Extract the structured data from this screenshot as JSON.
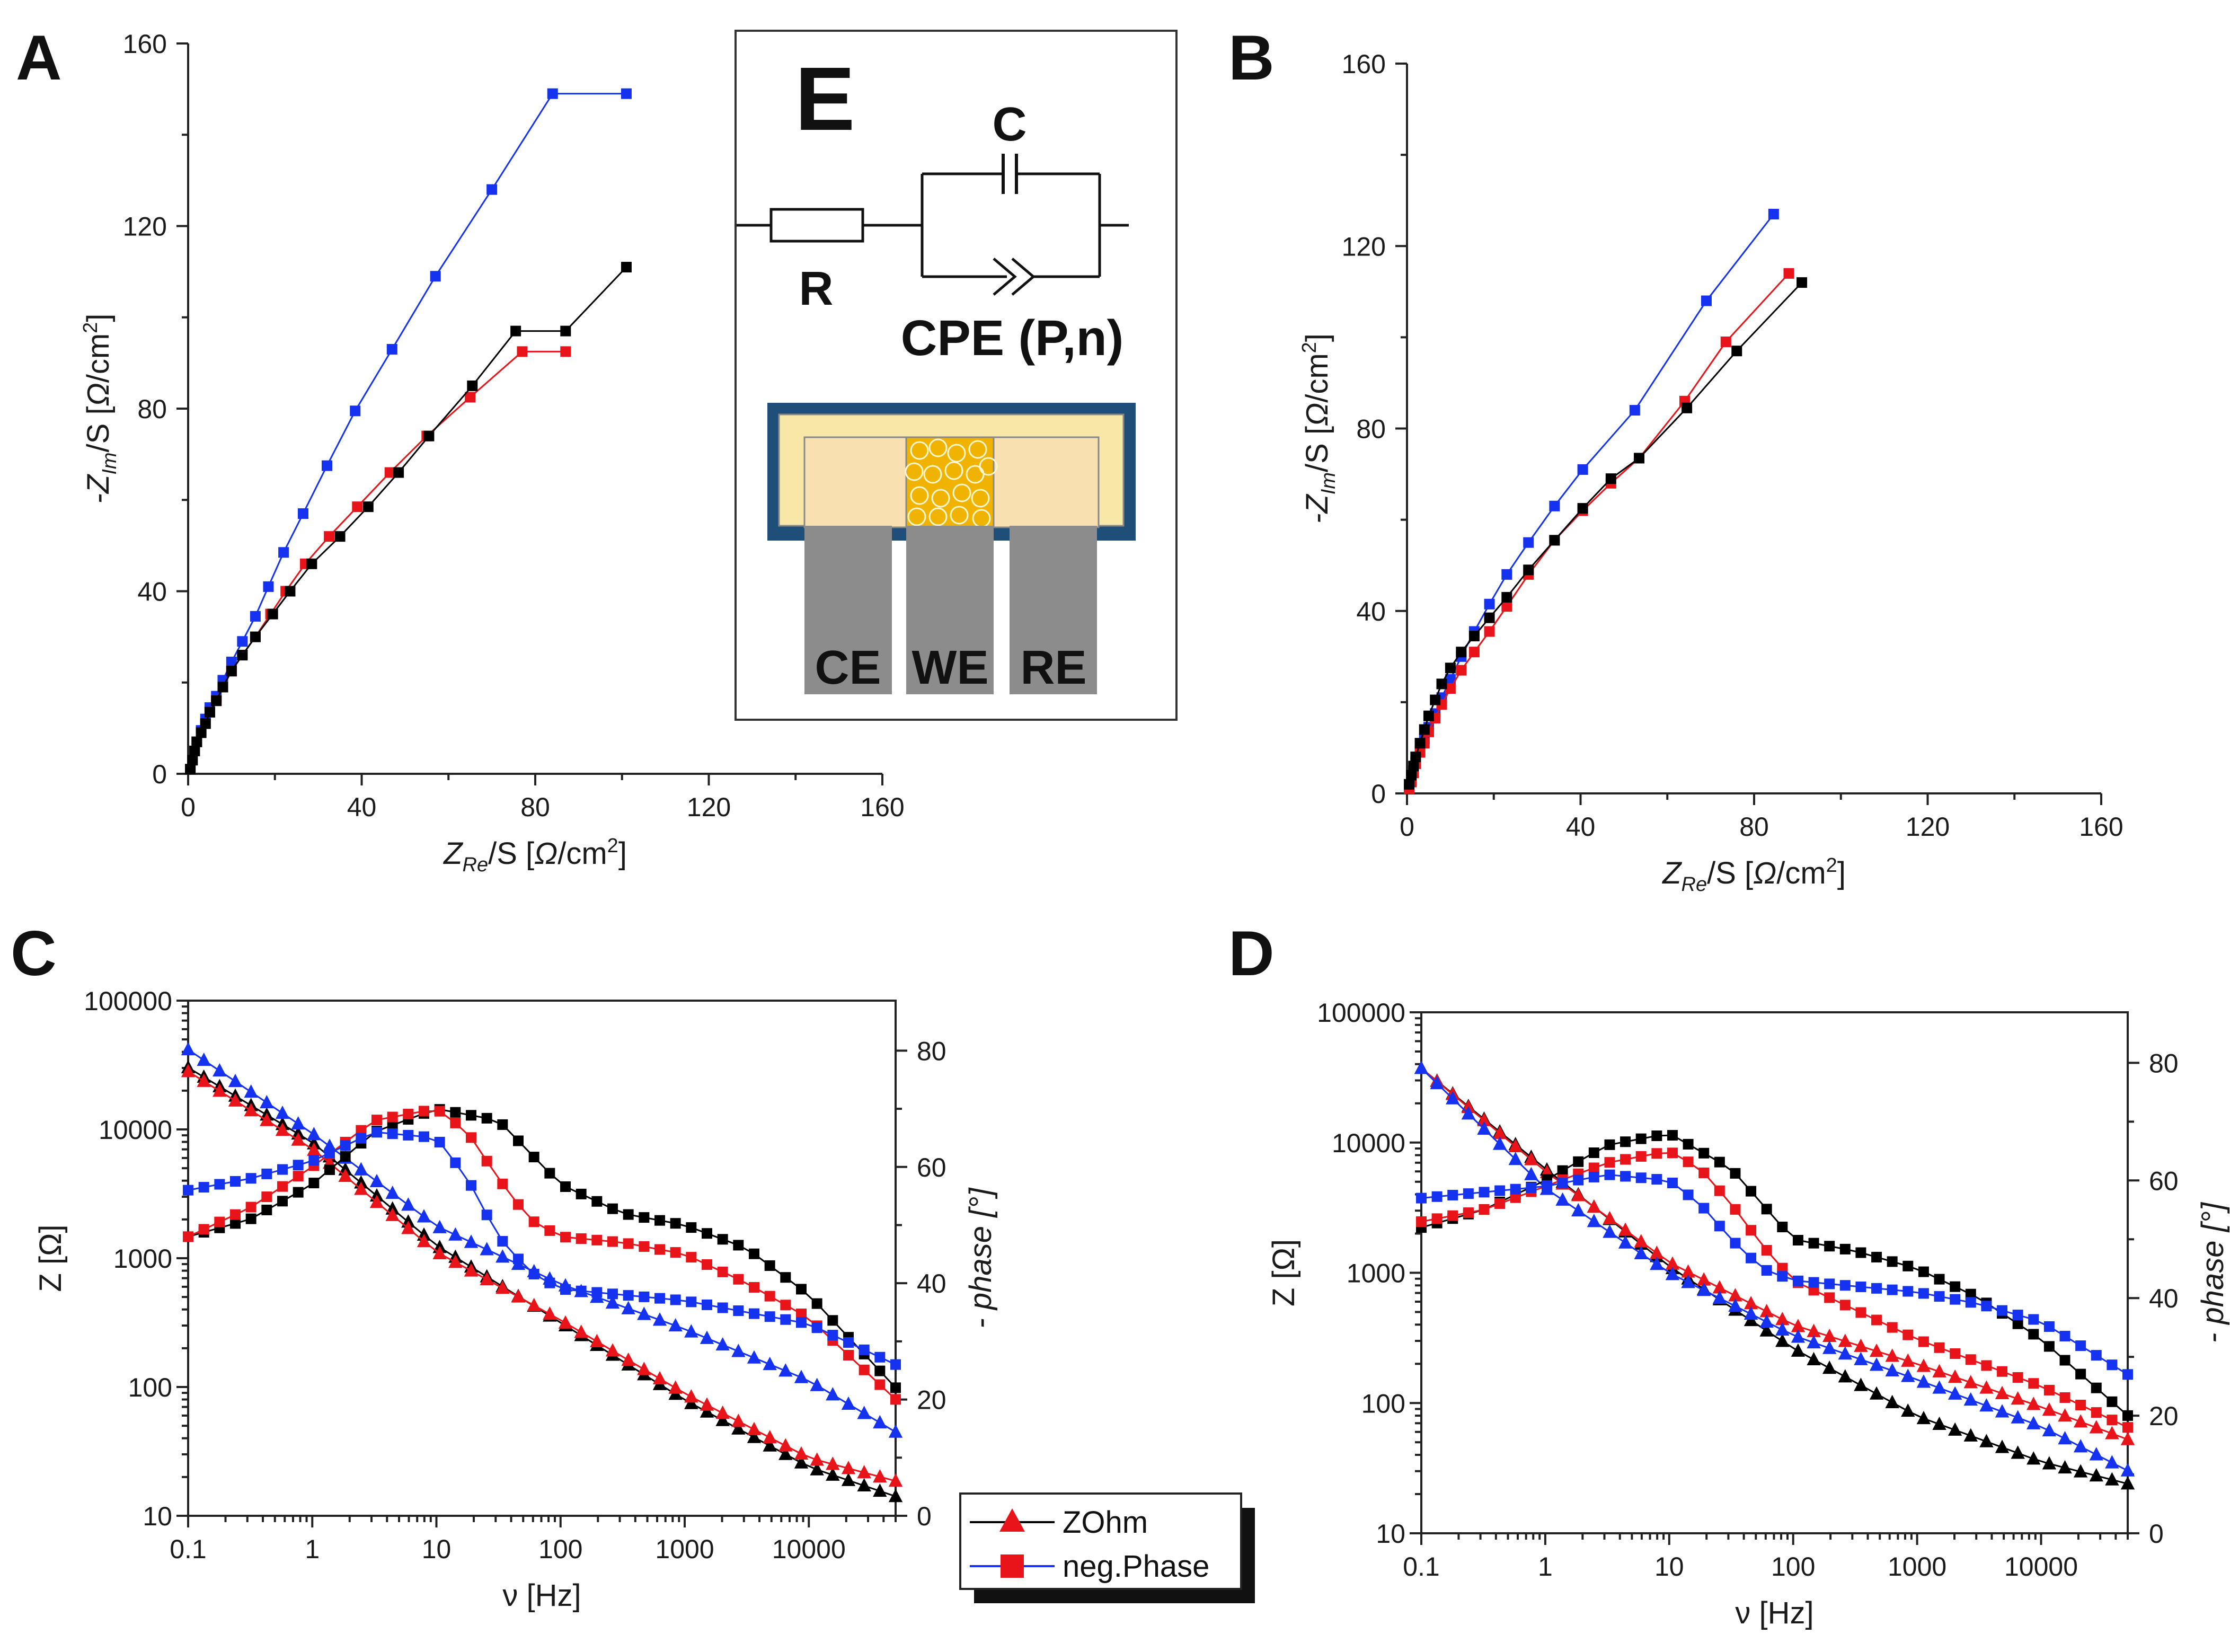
{
  "figure": {
    "panel_labels": {
      "a": "A",
      "b": "B",
      "c": "C",
      "d": "D",
      "e": "E"
    },
    "schematic": {
      "label": "E",
      "capacitor_label": "C",
      "resistor_label": "R",
      "cpe_label": "CPE (P,n)",
      "electrodes": [
        "CE",
        "WE",
        "RE"
      ]
    },
    "legend": {
      "entries": [
        {
          "label": "ZOhm",
          "marker": "triangle"
        },
        {
          "label": "neg.Phase",
          "marker": "square"
        }
      ]
    },
    "colors": {
      "black": "#000000",
      "red": "#e8141a",
      "blue": "#1432f0",
      "frame_blue": "#1f4e79",
      "yellow_fill": "#f7e8a8",
      "electrode_gray": "#8c8c8c",
      "we_gold": "#f0b400"
    }
  },
  "chart_data": [
    {
      "id": "A",
      "type": "scatter",
      "title": "A",
      "xlabel_parts": [
        "Z",
        "Re",
        "/S [",
        "Ω",
        "/cm",
        "2",
        "]"
      ],
      "ylabel_parts": [
        "-Z",
        "Im",
        "/S [",
        "Ω",
        "/cm",
        "2",
        "]"
      ],
      "xlim": [
        0,
        160
      ],
      "ylim": [
        0,
        160
      ],
      "xticks": [
        "0",
        "40",
        "80",
        "120",
        "160"
      ],
      "yticks": [
        "0",
        "40",
        "80",
        "120",
        "160"
      ],
      "series": [
        {
          "name": "blue",
          "color": "#1432f0",
          "x": [
            0.5,
            1,
            1.5,
            2,
            3,
            4,
            5,
            6.5,
            8,
            10,
            12.5,
            15.5,
            18.5,
            22,
            26.5,
            32,
            38.5,
            47,
            57,
            70,
            84,
            101
          ],
          "y": [
            1,
            3,
            5,
            7,
            9.5,
            12,
            14.5,
            17,
            20.5,
            24.5,
            29,
            34.5,
            41,
            48.5,
            57,
            67.5,
            79.5,
            93,
            109,
            128,
            149,
            149
          ]
        },
        {
          "name": "red",
          "color": "#e8141a",
          "x": [
            0.5,
            1,
            1.5,
            2,
            3,
            4,
            5,
            6.5,
            8,
            10,
            12.5,
            15.5,
            19,
            22.5,
            27,
            32.5,
            39,
            46.5,
            55,
            65,
            77,
            87
          ],
          "y": [
            1,
            3,
            5,
            7,
            9,
            11,
            13.5,
            16,
            19,
            22.5,
            26,
            30,
            35,
            40,
            46,
            52,
            58.5,
            66,
            74,
            82.5,
            92.5,
            92.5
          ]
        },
        {
          "name": "black",
          "color": "#000000",
          "x": [
            0.5,
            1,
            1.5,
            2,
            3,
            4,
            5,
            6.5,
            8,
            10,
            12.5,
            15.5,
            19.5,
            23.5,
            28.5,
            35,
            41.5,
            48.5,
            55.5,
            65.5,
            75.5,
            87,
            101
          ],
          "y": [
            1,
            3,
            5,
            7,
            9,
            11,
            13.5,
            16,
            19,
            22.5,
            26,
            30,
            35,
            40,
            46,
            52,
            58.5,
            66,
            74,
            85,
            97,
            97,
            111
          ]
        }
      ]
    },
    {
      "id": "B",
      "type": "scatter",
      "title": "B",
      "xlabel_parts": [
        "Z",
        "Re",
        "/S [",
        "Ω",
        "/cm",
        "2",
        "]"
      ],
      "ylabel_parts": [
        "-Z",
        "Im",
        "/S [",
        "Ω",
        "/cm",
        "2",
        "]"
      ],
      "xlim": [
        0,
        160
      ],
      "ylim": [
        0,
        160
      ],
      "xticks": [
        "0",
        "40",
        "80",
        "120",
        "160"
      ],
      "yticks": [
        "0",
        "40",
        "80",
        "120",
        "160"
      ],
      "series": [
        {
          "name": "blue",
          "color": "#1432f0",
          "x": [
            0.5,
            1,
            1.5,
            2,
            3,
            4,
            5,
            6.5,
            8,
            10,
            12.5,
            15.5,
            19,
            23,
            28,
            34,
            40.5,
            52.5,
            69,
            84.5
          ],
          "y": [
            1,
            3,
            5,
            7,
            9.5,
            12,
            14.5,
            17.5,
            21,
            25,
            30,
            35.5,
            41.5,
            48,
            55,
            63,
            71,
            84,
            108,
            127
          ]
        },
        {
          "name": "red",
          "color": "#e8141a",
          "x": [
            0.5,
            1,
            1.5,
            2,
            3,
            4,
            5,
            6.5,
            8,
            10,
            12.5,
            15.5,
            19,
            23,
            28,
            34,
            40.5,
            47,
            53.5,
            64,
            73.5,
            88
          ],
          "y": [
            1,
            2.5,
            4.5,
            6.5,
            9,
            11,
            13.5,
            16.5,
            19.5,
            23,
            27,
            31,
            35.5,
            41,
            48,
            55.5,
            62,
            68,
            73.5,
            86,
            99,
            114
          ]
        },
        {
          "name": "black",
          "color": "#000000",
          "x": [
            0.5,
            1,
            1.5,
            2,
            3,
            4,
            5,
            6.5,
            8,
            10,
            12.5,
            15.5,
            19,
            23,
            28,
            34,
            40.5,
            47,
            53.5,
            64.5,
            76,
            91
          ],
          "y": [
            2,
            4,
            6,
            8,
            11,
            14,
            17,
            20.5,
            24,
            27.5,
            31,
            34.5,
            38.5,
            43,
            49,
            55.5,
            62.5,
            69,
            73.5,
            84.5,
            97,
            112
          ]
        }
      ]
    },
    {
      "id": "C",
      "type": "scatter",
      "title": "C",
      "xlabel": "ν [Hz]",
      "ylabel": "Z [Ω]",
      "y2label": "- phase [°]",
      "xlim": [
        0.1,
        50000
      ],
      "ylim": [
        10,
        100000
      ],
      "y2lim": [
        0,
        88.6
      ],
      "xticks": [
        "0.1",
        "1",
        "10",
        "100",
        "1000",
        "10000"
      ],
      "yticks": [
        "10",
        "100",
        "1000",
        "10000",
        "100000"
      ],
      "y2ticks": [
        "0",
        "20",
        "40",
        "60",
        "80"
      ],
      "impedance_series": [
        {
          "name": "black ZOhm",
          "color": "#000000",
          "logf": [
            -1,
            0,
            1,
            2,
            3,
            4,
            4.7
          ],
          "logz": [
            4.48,
            3.9,
            3.1,
            2.5,
            1.9,
            1.38,
            1.15
          ]
        },
        {
          "name": "red ZOhm",
          "color": "#e8141a",
          "logf": [
            -1,
            0,
            1,
            2,
            3,
            4,
            4.7
          ],
          "logz": [
            4.45,
            3.85,
            3.05,
            2.52,
            1.95,
            1.45,
            1.27
          ]
        },
        {
          "name": "blue ZOhm",
          "color": "#1432f0",
          "logf": [
            -1,
            0,
            1,
            2,
            3,
            4,
            4.7
          ],
          "logz": [
            4.62,
            3.97,
            3.25,
            2.8,
            2.45,
            2.05,
            1.65
          ]
        }
      ],
      "phase_series": [
        {
          "name": "black neg.Phase",
          "color": "#000000",
          "logf": [
            -1,
            -0.5,
            0,
            0.5,
            1,
            1.5,
            2,
            2.5,
            3,
            3.5,
            4,
            4.7
          ],
          "phase": [
            48,
            51,
            57,
            66,
            70,
            68,
            57,
            52,
            50,
            46,
            38,
            22
          ]
        },
        {
          "name": "red neg.Phase",
          "color": "#e8141a",
          "logf": [
            -1,
            -0.5,
            0,
            0.5,
            1,
            1.25,
            1.5,
            1.75,
            2,
            2.5,
            3,
            3.5,
            4,
            4.7
          ],
          "phase": [
            48,
            53,
            60,
            68,
            70,
            66,
            58,
            51,
            48,
            47,
            45,
            40,
            34,
            20
          ]
        },
        {
          "name": "blue neg.Phase",
          "color": "#1432f0",
          "logf": [
            -1,
            -0.5,
            0,
            0.5,
            1,
            1.25,
            1.5,
            1.75,
            2,
            2.5,
            3,
            3.5,
            4,
            4.7
          ],
          "phase": [
            56,
            58,
            61,
            66,
            65,
            58,
            48,
            42,
            39,
            38,
            37,
            35,
            33,
            26
          ]
        }
      ]
    },
    {
      "id": "D",
      "type": "scatter",
      "title": "D",
      "xlabel": "ν [Hz]",
      "ylabel": "Z [Ω]",
      "y2label": "- phase [°]",
      "xlim": [
        0.1,
        50000
      ],
      "ylim": [
        10,
        100000
      ],
      "y2lim": [
        0,
        88.6
      ],
      "xticks": [
        "0.1",
        "1",
        "10",
        "100",
        "1000",
        "10000"
      ],
      "yticks": [
        "10",
        "100",
        "1000",
        "10000",
        "100000"
      ],
      "y2ticks": [
        "0",
        "20",
        "40",
        "60",
        "80"
      ],
      "impedance_series": [
        {
          "name": "black ZOhm",
          "color": "#000000",
          "logf": [
            -1,
            0,
            1,
            2,
            3,
            4,
            4.7
          ],
          "logz": [
            4.57,
            3.8,
            3.05,
            2.42,
            1.9,
            1.55,
            1.38
          ]
        },
        {
          "name": "red ZOhm",
          "color": "#e8141a",
          "logf": [
            -1,
            0,
            1,
            2,
            3,
            4,
            4.7
          ],
          "logz": [
            4.57,
            3.78,
            3.08,
            2.6,
            2.3,
            1.97,
            1.72
          ]
        },
        {
          "name": "blue ZOhm",
          "color": "#1432f0",
          "logf": [
            -1,
            0,
            1,
            2,
            3,
            4,
            4.7
          ],
          "logz": [
            4.57,
            3.65,
            3.0,
            2.52,
            2.18,
            1.82,
            1.48
          ]
        }
      ],
      "phase_series": [
        {
          "name": "black neg.Phase",
          "color": "#000000",
          "logf": [
            -1,
            -0.5,
            0,
            0.5,
            1,
            1.5,
            2,
            2.5,
            3,
            3.5,
            4,
            4.7
          ],
          "phase": [
            52,
            55,
            60,
            66,
            68,
            62,
            50,
            48,
            45,
            40,
            33,
            20
          ]
        },
        {
          "name": "red neg.Phase",
          "color": "#e8141a",
          "logf": [
            -1,
            -0.5,
            0,
            0.5,
            1,
            1.25,
            1.5,
            1.75,
            2,
            2.5,
            3,
            3.5,
            4,
            4.7
          ],
          "phase": [
            53,
            55,
            59,
            63,
            65,
            62,
            56,
            49,
            43,
            38,
            33,
            29,
            25,
            18
          ]
        },
        {
          "name": "blue neg.Phase",
          "color": "#1432f0",
          "logf": [
            -1,
            -0.5,
            0,
            0.5,
            1,
            1.25,
            1.5,
            1.75,
            2,
            2.5,
            3,
            3.5,
            4,
            4.7
          ],
          "phase": [
            57,
            58,
            59,
            61,
            60,
            56,
            50,
            45,
            43,
            42,
            41,
            39,
            36,
            27
          ]
        }
      ]
    }
  ]
}
